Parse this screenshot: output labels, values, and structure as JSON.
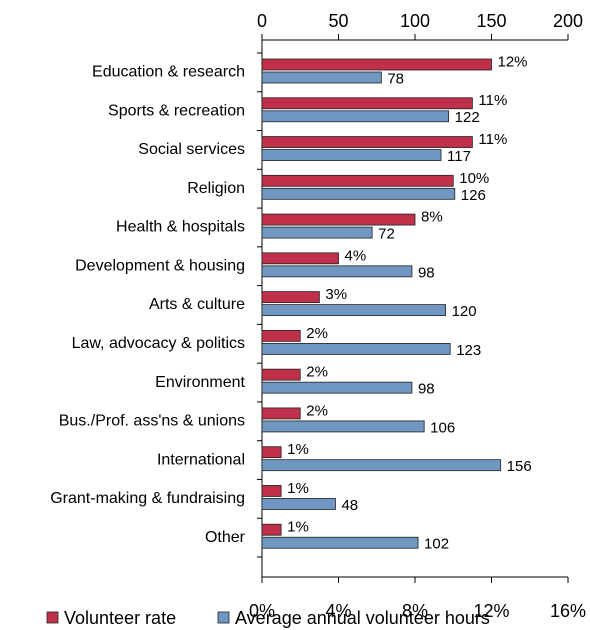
{
  "chart_data": {
    "type": "bar",
    "orientation": "horizontal",
    "categories": [
      "Education & research",
      "Sports & recreation",
      "Social services",
      "Religion",
      "Health & hospitals",
      "Development & housing",
      "Arts & culture",
      "Law, advocacy & politics",
      "Environment",
      "Bus./Prof. ass'ns & unions",
      "International",
      "Grant-making & fundraising",
      "Other"
    ],
    "series": [
      {
        "name": "Volunteer rate",
        "color": "#c0304a",
        "axis": "x",
        "values": [
          12,
          11,
          11,
          10,
          8,
          4,
          3,
          2,
          2,
          2,
          1,
          1,
          1
        ],
        "value_labels": [
          "12%",
          "11%",
          "11%",
          "10%",
          "8%",
          "4%",
          "3%",
          "2%",
          "2%",
          "2%",
          "1%",
          "1%",
          "1%"
        ]
      },
      {
        "name": "Average annual volunteer hours",
        "color": "#7096c2",
        "axis": "x2",
        "values": [
          78,
          122,
          117,
          126,
          72,
          98,
          120,
          123,
          98,
          106,
          156,
          48,
          102
        ]
      }
    ],
    "xlim": [
      0,
      16
    ],
    "xticks": [
      {
        "value": 0,
        "label": "0%"
      },
      {
        "value": 4,
        "label": "4%"
      },
      {
        "value": 8,
        "label": "8%"
      },
      {
        "value": 12,
        "label": "12%"
      },
      {
        "value": 16,
        "label": "16%"
      }
    ],
    "x2lim": [
      0,
      200
    ],
    "x2ticks": [
      0,
      50,
      100,
      150,
      200
    ],
    "legend": "bottom"
  }
}
